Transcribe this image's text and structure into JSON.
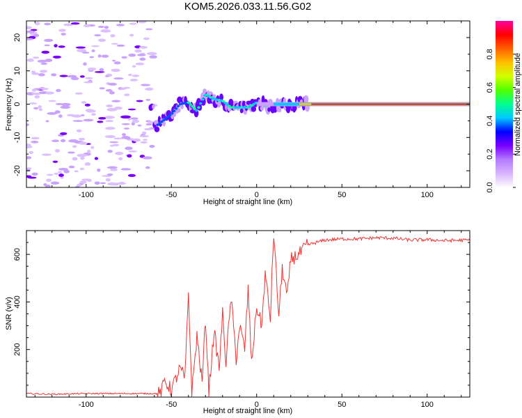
{
  "title": "KOM5.2026.033.11.56.G02",
  "chart_data": [
    {
      "type": "heatmap",
      "name": "spectrogram",
      "xlabel": "Height of straight line (km)",
      "ylabel": "Frequency (Hz)",
      "xlim": [
        -135,
        125
      ],
      "ylim": [
        -25,
        25
      ],
      "xticks": [
        -100,
        -50,
        0,
        50,
        100
      ],
      "xtick_labels": [
        "-100",
        "-50",
        "0",
        "50",
        "100"
      ],
      "yticks": [
        -20,
        -10,
        0,
        10,
        20
      ],
      "ytick_labels": [
        "-20",
        "-10",
        "0",
        "10",
        "20"
      ],
      "signal_track": {
        "x": [
          -60,
          -55,
          -50,
          -45,
          -40,
          -35,
          -30,
          -25,
          -20,
          -15,
          -10,
          -5,
          0,
          5,
          10,
          20,
          30,
          125
        ],
        "frequency": [
          -7,
          -5,
          -3,
          0,
          0.5,
          -2,
          3,
          1.5,
          1,
          -1,
          -1,
          -1,
          0.5,
          -0.5,
          0,
          0,
          0,
          0
        ]
      }
    },
    {
      "type": "line",
      "name": "snr",
      "xlabel": "Height of straight line (km)",
      "ylabel": "SNR (v/v)",
      "xlim": [
        -135,
        125
      ],
      "ylim": [
        0,
        700
      ],
      "xticks": [
        -100,
        -50,
        0,
        50,
        100
      ],
      "xtick_labels": [
        "-100",
        "-50",
        "0",
        "50",
        "100"
      ],
      "yticks": [
        200,
        400,
        600
      ],
      "ytick_labels": [
        "200",
        "400",
        "600"
      ],
      "color": "#ee3333",
      "x": [
        -135,
        -120,
        -100,
        -80,
        -60,
        -56,
        -54,
        -50,
        -45,
        -42,
        -40,
        -38,
        -35,
        -32,
        -30,
        -28,
        -25,
        -22,
        -20,
        -18,
        -15,
        -12,
        -10,
        -7,
        -5,
        -3,
        0,
        3,
        5,
        8,
        10,
        13,
        15,
        18,
        20,
        25,
        30,
        35,
        40,
        50,
        60,
        70,
        80,
        90,
        100,
        110,
        125
      ],
      "y": [
        15,
        12,
        15,
        15,
        15,
        15,
        70,
        30,
        120,
        80,
        440,
        20,
        260,
        60,
        330,
        25,
        280,
        120,
        350,
        150,
        420,
        160,
        300,
        200,
        460,
        140,
        380,
        300,
        520,
        330,
        690,
        340,
        540,
        420,
        580,
        600,
        640,
        650,
        660,
        665,
        665,
        670,
        668,
        660,
        662,
        658,
        660
      ]
    }
  ],
  "colorbar": {
    "label": "Normalized spectral amplitude",
    "ticks": [
      0.0,
      0.2,
      0.4,
      0.6,
      0.8
    ],
    "tick_labels": [
      "0.0",
      "0.2",
      "0.4",
      "0.6",
      "0.8"
    ],
    "range": [
      0,
      1
    ],
    "colors": [
      "#ffffff",
      "#d8b4ff",
      "#b37cff",
      "#7a00ff",
      "#0000ff",
      "#00c8ff",
      "#00ff90",
      "#50ff00",
      "#d0ff00",
      "#ffc000",
      "#ff6000",
      "#ff0000",
      "#ff00a0"
    ]
  }
}
